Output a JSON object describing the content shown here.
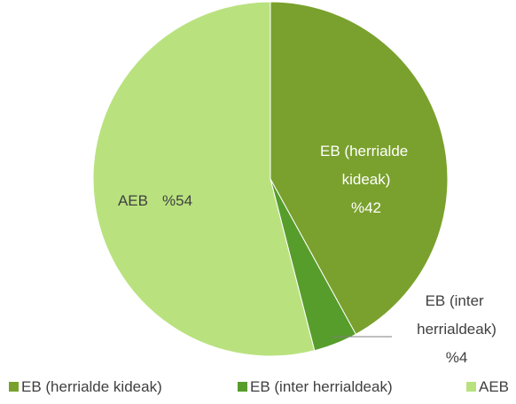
{
  "chart_data": {
    "type": "pie",
    "categories": [
      "EB (herrialde kideak)",
      "EB (inter herrialdeak)",
      "AEB"
    ],
    "values": [
      42,
      4,
      54
    ],
    "value_labels": [
      "%42",
      "%4",
      "%54"
    ],
    "colors": [
      "#7aa12d",
      "#579d2b",
      "#b9e27f"
    ],
    "legend": "bottom"
  }
}
